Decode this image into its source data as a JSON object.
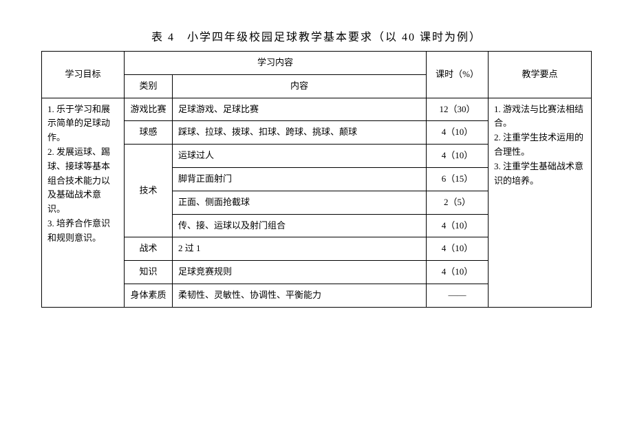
{
  "title": "表 4　小学四年级校园足球教学基本要求（以 40 课时为例）",
  "headers": {
    "goal": "学习目标",
    "content_group": "学习内容",
    "category": "类别",
    "content": "内容",
    "hours": "课时（%）",
    "points": "教学要点"
  },
  "goal_text": "1. 乐于学习和展示简单的足球动作。\n2. 发展运球、踢球、接球等基本组合技术能力以及基础战术意识。\n3. 培养合作意识和规则意识。",
  "points_text": "1. 游戏法与比赛法相结合。\n2. 注重学生技术运用的合理性。\n3. 注重学生基础战术意识的培养。",
  "rows": [
    {
      "category": "游戏比赛",
      "content": "足球游戏、足球比赛",
      "hours": "12（30）"
    },
    {
      "category": "球感",
      "content": "踩球、拉球、拨球、扣球、跨球、挑球、颠球",
      "hours": "4（10）"
    },
    {
      "category": "技术",
      "content": "运球过人",
      "hours": "4（10）"
    },
    {
      "category": "",
      "content": "脚背正面射门",
      "hours": "6（15）"
    },
    {
      "category": "",
      "content": "正面、侧面抢截球",
      "hours": "2（5）"
    },
    {
      "category": "",
      "content": "传、接、运球以及射门组合",
      "hours": "4（10）"
    },
    {
      "category": "战术",
      "content": "2 过 1",
      "hours": "4（10）"
    },
    {
      "category": "知识",
      "content": "足球竞赛规则",
      "hours": "4（10）"
    },
    {
      "category": "身体素质",
      "content": "柔韧性、灵敏性、协调性、平衡能力",
      "hours": "——"
    }
  ]
}
